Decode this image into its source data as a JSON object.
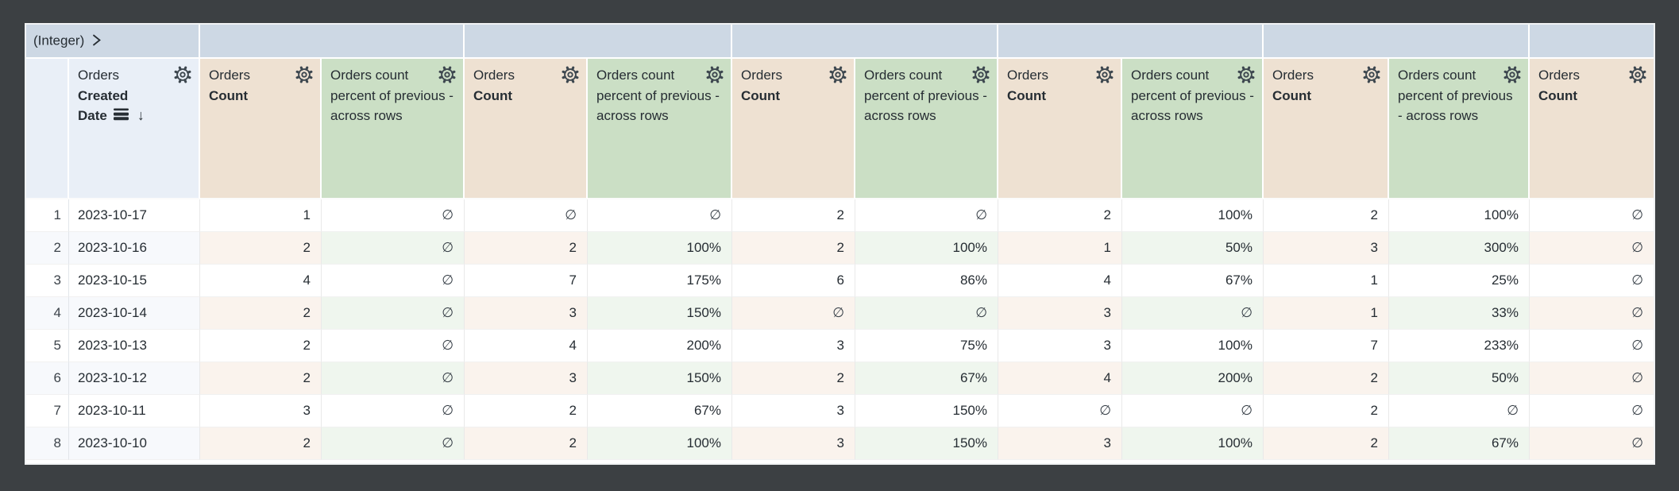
{
  "pivot_band": {
    "label": "(Integer)",
    "expand_icon": "chevron-right-icon"
  },
  "icons": {
    "gear": "gear-icon",
    "chevron": "chevron-right-icon",
    "sort_desc": "sort-desc-icon",
    "subtotal": "subtotal-icon"
  },
  "null_symbol": "∅",
  "sort_desc_glyph": "↓",
  "colors": {
    "backdrop": "#3c4043",
    "pivot_band": "#cdd8e4",
    "dimension_header": "#e9eff7",
    "measure_header": "#eee1d2",
    "calc_header": "#cbdfc5",
    "even_row_dimension": "#f7f9fc",
    "even_row_measure": "#faf3ed",
    "even_row_calc": "#eff6ee",
    "text": "#262d33"
  },
  "columns": [
    {
      "kind": "rownum",
      "label": ""
    },
    {
      "kind": "dimension",
      "view": "Orders",
      "field_lines": [
        "Created",
        "Date"
      ],
      "sorted": "desc",
      "has_gear": true,
      "has_subtotal_icon": true
    },
    {
      "kind": "measure",
      "view": "Orders",
      "field_lines": [
        "Count"
      ],
      "has_gear": true
    },
    {
      "kind": "calc",
      "label": "Orders count percent of previous - across rows",
      "has_gear": true
    },
    {
      "kind": "measure",
      "view": "Orders",
      "field_lines": [
        "Count"
      ],
      "has_gear": true
    },
    {
      "kind": "calc",
      "label": "Orders count percent of previous - across rows",
      "has_gear": true
    },
    {
      "kind": "measure",
      "view": "Orders",
      "field_lines": [
        "Count"
      ],
      "has_gear": true
    },
    {
      "kind": "calc",
      "label": "Orders count percent of previous - across rows",
      "has_gear": true
    },
    {
      "kind": "measure",
      "view": "Orders",
      "field_lines": [
        "Count"
      ],
      "has_gear": true
    },
    {
      "kind": "calc",
      "label": "Orders count percent of previous - across rows",
      "has_gear": true
    },
    {
      "kind": "measure",
      "view": "Orders",
      "field_lines": [
        "Count"
      ],
      "has_gear": true
    },
    {
      "kind": "calc",
      "label": "Orders count percent of previous - across rows",
      "has_gear": true
    },
    {
      "kind": "measure",
      "view": "Orders",
      "field_lines": [
        "Count"
      ],
      "has_gear": true
    }
  ],
  "rows": [
    {
      "num": "1",
      "date": "2023-10-17",
      "cells": [
        "1",
        "∅",
        "∅",
        "∅",
        "2",
        "∅",
        "2",
        "100%",
        "2",
        "100%",
        "∅"
      ]
    },
    {
      "num": "2",
      "date": "2023-10-16",
      "cells": [
        "2",
        "∅",
        "2",
        "100%",
        "2",
        "100%",
        "1",
        "50%",
        "3",
        "300%",
        "∅"
      ]
    },
    {
      "num": "3",
      "date": "2023-10-15",
      "cells": [
        "4",
        "∅",
        "7",
        "175%",
        "6",
        "86%",
        "4",
        "67%",
        "1",
        "25%",
        "∅"
      ]
    },
    {
      "num": "4",
      "date": "2023-10-14",
      "cells": [
        "2",
        "∅",
        "3",
        "150%",
        "∅",
        "∅",
        "3",
        "∅",
        "1",
        "33%",
        "∅"
      ]
    },
    {
      "num": "5",
      "date": "2023-10-13",
      "cells": [
        "2",
        "∅",
        "4",
        "200%",
        "3",
        "75%",
        "3",
        "100%",
        "7",
        "233%",
        "∅"
      ]
    },
    {
      "num": "6",
      "date": "2023-10-12",
      "cells": [
        "2",
        "∅",
        "3",
        "150%",
        "2",
        "67%",
        "4",
        "200%",
        "2",
        "50%",
        "∅"
      ]
    },
    {
      "num": "7",
      "date": "2023-10-11",
      "cells": [
        "3",
        "∅",
        "2",
        "67%",
        "3",
        "150%",
        "∅",
        "∅",
        "2",
        "∅",
        "∅"
      ]
    },
    {
      "num": "8",
      "date": "2023-10-10",
      "cells": [
        "2",
        "∅",
        "2",
        "100%",
        "3",
        "150%",
        "3",
        "100%",
        "2",
        "67%",
        "∅"
      ]
    }
  ]
}
